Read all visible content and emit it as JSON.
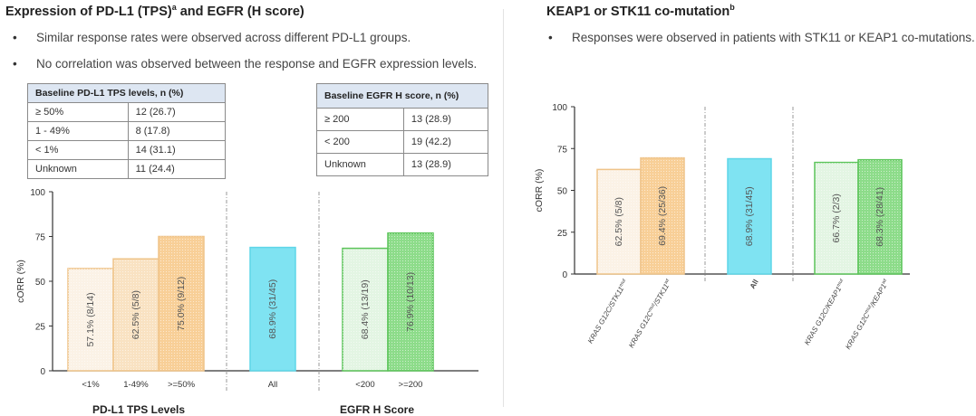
{
  "left": {
    "title": "Expression of PD-L1 (TPS)",
    "title_sup": "a",
    "title_suffix": " and EGFR (H score)",
    "bullets": [
      "Similar response rates were observed across different PD-L1 groups.",
      "No correlation was observed between the response and EGFR expression levels."
    ],
    "pdl1_table": {
      "header": "Baseline PD-L1 TPS levels, n (%)",
      "rows": [
        [
          "≥ 50%",
          "12 (26.7)"
        ],
        [
          "1 - 49%",
          "8 (17.8)"
        ],
        [
          "< 1%",
          "14 (31.1)"
        ],
        [
          "Unknown",
          "11 (24.4)"
        ]
      ]
    },
    "egfr_table": {
      "header": "Baseline EGFR H score, n (%)",
      "rows": [
        [
          "≥ 200",
          "13 (28.9)"
        ],
        [
          "< 200",
          "19 (42.2)"
        ],
        [
          "Unknown",
          "13 (28.9)"
        ]
      ]
    }
  },
  "right": {
    "title": "KEAP1 or STK11 co-mutation",
    "title_sup": "b",
    "bullets": [
      "Responses were observed in patients with STK11 or KEAP1 co-mutations."
    ]
  },
  "colors": {
    "pdl1_light": "#fbf2e6",
    "pdl1_mid": "#f9e2c2",
    "pdl1_dark": "#f8cf97",
    "pdl1_border": "#efc48a",
    "all": "#7fe3f2",
    "all_border": "#5fd6e8",
    "egfr_light": "#e3f5e3",
    "egfr_dark": "#8ddc8a",
    "egfr_border": "#5cc45a"
  },
  "chart_data": [
    {
      "type": "bar",
      "ylabel": "cORR (%)",
      "ylim": [
        0,
        100
      ],
      "yticks": [
        0,
        25,
        50,
        75,
        100
      ],
      "group_labels": [
        "PD-L1 TPS Levels",
        "EGFR H Score"
      ],
      "bars": [
        {
          "category": "<1%",
          "value": 57.1,
          "label": "57.1% (8/14)",
          "fill": "pdl1_light"
        },
        {
          "category": "1-49%",
          "value": 62.5,
          "label": "62.5% (5/8)",
          "fill": "pdl1_mid"
        },
        {
          "category": ">=50%",
          "value": 75.0,
          "label": "75.0% (9/12)",
          "fill": "pdl1_dark"
        },
        {
          "category": "All",
          "value": 68.9,
          "label": "68.9% (31/45)",
          "fill": "all"
        },
        {
          "category": "<200",
          "value": 68.4,
          "label": "68.4% (13/19)",
          "fill": "egfr_light"
        },
        {
          "category": ">=200",
          "value": 76.9,
          "label": "76.9% (10/13)",
          "fill": "egfr_dark"
        }
      ]
    },
    {
      "type": "bar",
      "ylabel": "cORR (%)",
      "ylim": [
        0,
        100
      ],
      "yticks": [
        0,
        25,
        50,
        75,
        100
      ],
      "bars": [
        {
          "category": "KRAS G12C/STK11",
          "sup": "mut",
          "value": 62.5,
          "label": "62.5% (5/8)",
          "fill": "pdl1_light"
        },
        {
          "category": "KRAS G12C",
          "sup": "mut",
          "category_suffix": "/STK11",
          "sup2": "wt",
          "value": 69.4,
          "label": "69.4% (25/36)",
          "fill": "pdl1_dark"
        },
        {
          "category": "All",
          "value": 68.9,
          "label": "68.9% (31/45)",
          "fill": "all"
        },
        {
          "category": "KRAS G12C/KEAP1",
          "sup": "mut",
          "value": 66.7,
          "label": "66.7% (2/3)",
          "fill": "egfr_light"
        },
        {
          "category": "KRAS G12C",
          "sup": "mut",
          "category_suffix": "/KEAP1",
          "sup2": "wt",
          "value": 68.3,
          "label": "68.3% (28/41)",
          "fill": "egfr_dark"
        }
      ]
    }
  ]
}
